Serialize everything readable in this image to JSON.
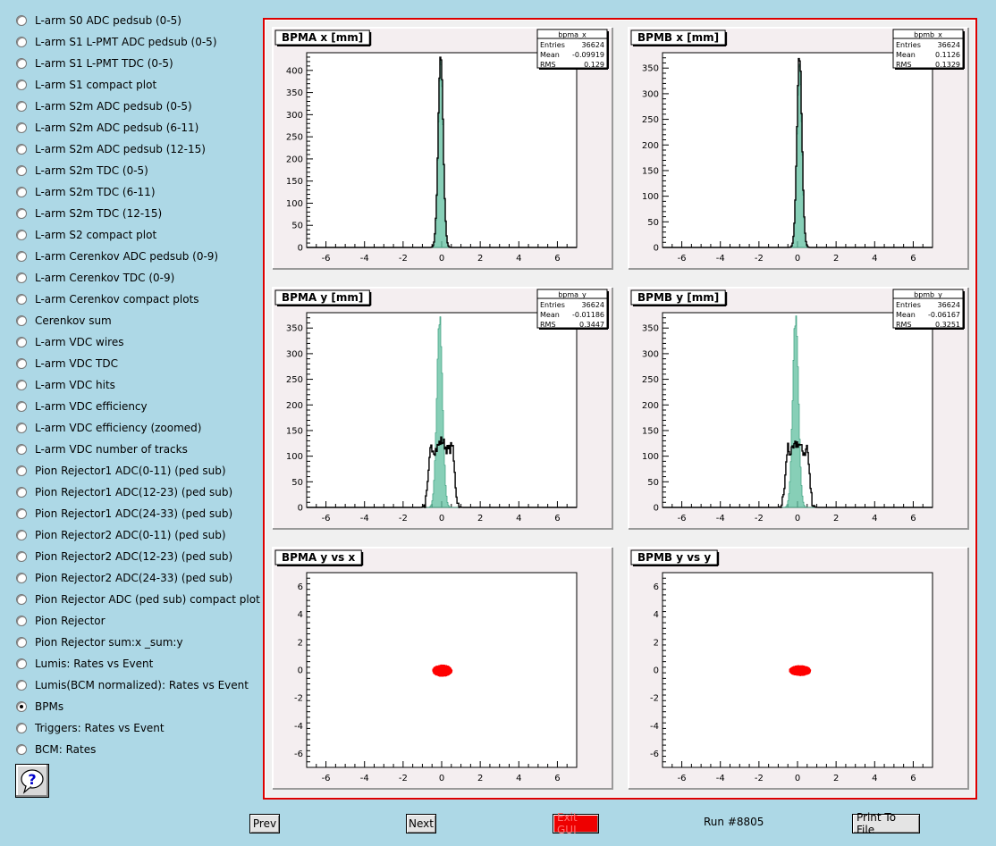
{
  "sidebar": {
    "items": [
      {
        "label": "L-arm S0 ADC pedsub (0-5)",
        "checked": false
      },
      {
        "label": "L-arm S1 L-PMT ADC pedsub (0-5)",
        "checked": false
      },
      {
        "label": "L-arm S1 L-PMT TDC (0-5)",
        "checked": false
      },
      {
        "label": "L-arm S1 compact plot",
        "checked": false
      },
      {
        "label": "L-arm S2m ADC pedsub (0-5)",
        "checked": false
      },
      {
        "label": "L-arm S2m ADC pedsub (6-11)",
        "checked": false
      },
      {
        "label": "L-arm S2m ADC pedsub (12-15)",
        "checked": false
      },
      {
        "label": "L-arm S2m TDC (0-5)",
        "checked": false
      },
      {
        "label": "L-arm S2m TDC (6-11)",
        "checked": false
      },
      {
        "label": "L-arm S2m TDC (12-15)",
        "checked": false
      },
      {
        "label": "L-arm S2 compact plot",
        "checked": false
      },
      {
        "label": "L-arm Cerenkov ADC pedsub (0-9)",
        "checked": false
      },
      {
        "label": "L-arm Cerenkov TDC (0-9)",
        "checked": false
      },
      {
        "label": "L-arm Cerenkov compact plots",
        "checked": false
      },
      {
        "label": "Cerenkov sum",
        "checked": false
      },
      {
        "label": "L-arm VDC wires",
        "checked": false
      },
      {
        "label": "L-arm VDC TDC",
        "checked": false
      },
      {
        "label": "L-arm VDC hits",
        "checked": false
      },
      {
        "label": "L-arm VDC efficiency",
        "checked": false
      },
      {
        "label": "L-arm VDC efficiency (zoomed)",
        "checked": false
      },
      {
        "label": "L-arm VDC number of tracks",
        "checked": false
      },
      {
        "label": "Pion Rejector1 ADC(0-11) (ped sub)",
        "checked": false
      },
      {
        "label": "Pion Rejector1 ADC(12-23) (ped sub)",
        "checked": false
      },
      {
        "label": "Pion Rejector1 ADC(24-33) (ped sub)",
        "checked": false
      },
      {
        "label": "Pion Rejector2 ADC(0-11) (ped sub)",
        "checked": false
      },
      {
        "label": "Pion Rejector2 ADC(12-23) (ped sub)",
        "checked": false
      },
      {
        "label": "Pion Rejector2 ADC(24-33) (ped sub)",
        "checked": false
      },
      {
        "label": "Pion Rejector ADC (ped sub) compact plot",
        "checked": false
      },
      {
        "label": "Pion Rejector",
        "checked": false
      },
      {
        "label": "Pion Rejector sum:x _sum:y",
        "checked": false
      },
      {
        "label": "Lumis: Rates vs Event",
        "checked": false
      },
      {
        "label": "Lumis(BCM normalized): Rates vs Event",
        "checked": false
      },
      {
        "label": "BPMs",
        "checked": true
      },
      {
        "label": "Triggers: Rates vs Event",
        "checked": false
      },
      {
        "label": "BCM: Rates",
        "checked": false
      }
    ],
    "help_icon": "question-mark-icon"
  },
  "footer": {
    "prev_label": "Prev",
    "next_label": "Next",
    "exit_label": "Exit GUI",
    "run_label": "Run #8805",
    "print_label": "Print To File"
  },
  "colors": {
    "background": "#add8e6",
    "frame_border": "#dd0000",
    "hist_fill": "#5fbf9f",
    "scatter": "#ff0000",
    "exit_button": "#ee0000"
  },
  "chart_data": [
    {
      "type": "histogram",
      "title": "BPMA x [mm]",
      "stats": {
        "name": "bpma_x",
        "entries": "36624",
        "mean": "-0.09919",
        "rms": "0.129"
      },
      "xlim": [
        -7,
        7
      ],
      "ylim": [
        0,
        440
      ],
      "xticks": [
        -6,
        -4,
        -2,
        0,
        2,
        4,
        6
      ],
      "yticks": [
        0,
        50,
        100,
        150,
        200,
        250,
        300,
        350,
        400
      ],
      "series": [
        {
          "style": "fill",
          "center": -0.05,
          "sigma": 0.13,
          "peak": 420
        },
        {
          "style": "line",
          "center": -0.05,
          "sigma": 0.13,
          "peak": 430
        }
      ]
    },
    {
      "type": "histogram",
      "title": "BPMB x [mm]",
      "stats": {
        "name": "bpmb_x",
        "entries": "36624",
        "mean": "0.1126",
        "rms": "0.1329"
      },
      "xlim": [
        -7,
        7
      ],
      "ylim": [
        0,
        380
      ],
      "xticks": [
        -6,
        -4,
        -2,
        0,
        2,
        4,
        6
      ],
      "yticks": [
        0,
        50,
        100,
        150,
        200,
        250,
        300,
        350
      ],
      "series": [
        {
          "style": "fill",
          "center": 0.1,
          "sigma": 0.13,
          "peak": 360
        },
        {
          "style": "line",
          "center": 0.1,
          "sigma": 0.13,
          "peak": 375
        }
      ]
    },
    {
      "type": "histogram",
      "title": "BPMA y [mm]",
      "stats": {
        "name": "bpma_y",
        "entries": "36624",
        "mean": "-0.01186",
        "rms": "0.3447"
      },
      "xlim": [
        -7,
        7
      ],
      "ylim": [
        0,
        380
      ],
      "xticks": [
        -6,
        -4,
        -2,
        0,
        2,
        4,
        6
      ],
      "yticks": [
        0,
        50,
        100,
        150,
        200,
        250,
        300,
        350
      ],
      "series": [
        {
          "style": "fill",
          "center": -0.1,
          "sigma": 0.15,
          "peak": 370
        },
        {
          "style": "plateau",
          "center": 0,
          "halfwidth": 0.5,
          "edge": 0.15,
          "peak": 130
        }
      ]
    },
    {
      "type": "histogram",
      "title": "BPMB y [mm]",
      "stats": {
        "name": "bpmb_y",
        "entries": "36624",
        "mean": "-0.06167",
        "rms": "0.3251"
      },
      "xlim": [
        -7,
        7
      ],
      "ylim": [
        0,
        380
      ],
      "xticks": [
        -6,
        -4,
        -2,
        0,
        2,
        4,
        6
      ],
      "yticks": [
        0,
        50,
        100,
        150,
        200,
        250,
        300,
        350
      ],
      "series": [
        {
          "style": "fill",
          "center": -0.1,
          "sigma": 0.15,
          "peak": 370
        },
        {
          "style": "plateau",
          "center": 0,
          "halfwidth": 0.45,
          "edge": 0.15,
          "peak": 125
        }
      ]
    },
    {
      "type": "scatter",
      "title": "BPMA y vs x",
      "xlim": [
        -7,
        7
      ],
      "ylim": [
        -7,
        7
      ],
      "xticks": [
        -6,
        -4,
        -2,
        0,
        2,
        4,
        6
      ],
      "yticks": [
        -6,
        -4,
        -2,
        0,
        2,
        4,
        6
      ],
      "cluster": {
        "cx": 0,
        "cy": 0,
        "rx": 0.5,
        "ry": 0.4
      }
    },
    {
      "type": "scatter",
      "title": "BPMB y vs y",
      "xlim": [
        -7,
        7
      ],
      "ylim": [
        -7,
        7
      ],
      "xticks": [
        -6,
        -4,
        -2,
        0,
        2,
        4,
        6
      ],
      "yticks": [
        -6,
        -4,
        -2,
        0,
        2,
        4,
        6
      ],
      "cluster": {
        "cx": 0.1,
        "cy": 0,
        "rx": 0.55,
        "ry": 0.35
      }
    }
  ]
}
